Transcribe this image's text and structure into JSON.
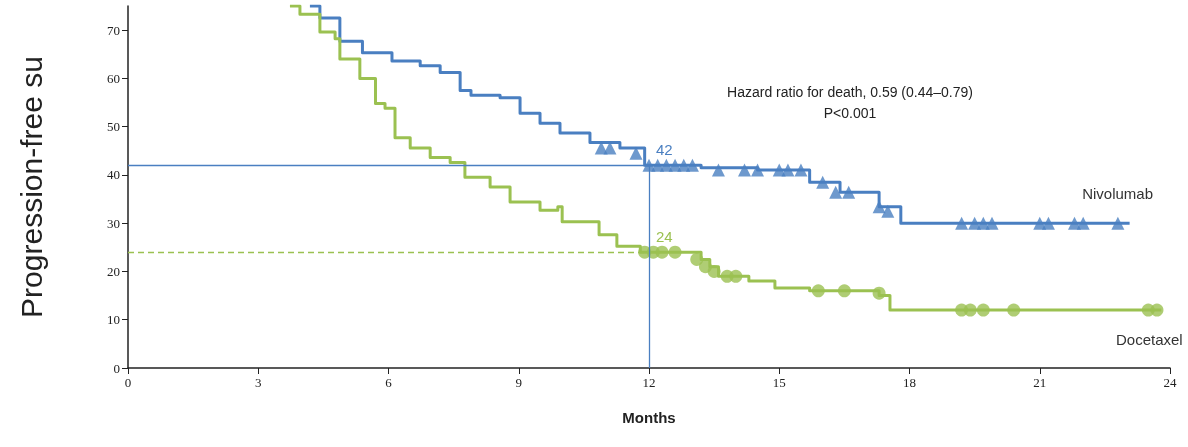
{
  "chart_data": {
    "type": "step",
    "xlabel": "Months",
    "ylabel": "Progression-free su",
    "xlim": [
      0,
      24
    ],
    "xticks": [
      0,
      3,
      6,
      9,
      12,
      15,
      18,
      21,
      24
    ],
    "ylim": [
      0,
      75
    ],
    "yticks": [
      0,
      10,
      20,
      30,
      40,
      50,
      60,
      70
    ],
    "grid": false,
    "legend": false,
    "annotations": [
      "Hazard ratio for death, 0.59 (0.44–0.79)",
      "P<0.001"
    ],
    "ref_lines": [
      {
        "axis": "y",
        "value": 42,
        "label": "42",
        "color": "#4a7fc1",
        "line_style": "solid"
      },
      {
        "axis": "y",
        "value": 24,
        "label": "24",
        "color": "#9bc151",
        "line_style": "dashed"
      },
      {
        "axis": "x",
        "value": 12,
        "color": "#4a7fc1",
        "line_style": "solid"
      }
    ],
    "series": [
      {
        "name": "Nivolumab",
        "color": "#4a7fc1",
        "x": [
          4.19,
          4.42,
          4.88,
          5.4,
          6.08,
          6.73,
          7.19,
          7.65,
          7.9,
          8.57,
          9.03,
          9.49,
          9.95,
          10.64,
          11.33,
          11.9,
          13.2,
          14.5,
          15.7,
          16.4,
          17.3,
          17.8,
          23.07
        ],
        "values": [
          75,
          72.5,
          67.7,
          65.3,
          63.6,
          62.6,
          61.2,
          57.5,
          56.5,
          56,
          52.8,
          50.7,
          48.7,
          46.7,
          45.6,
          42,
          41.5,
          41,
          38.5,
          36.4,
          33.4,
          30,
          30
        ]
      },
      {
        "name": "Docetaxel",
        "color": "#9bc151",
        "x": [
          3.73,
          3.96,
          4.42,
          4.77,
          4.88,
          5.34,
          5.7,
          5.92,
          6.15,
          6.5,
          6.96,
          7.42,
          7.76,
          8.34,
          8.8,
          9.49,
          9.9,
          10.0,
          10.85,
          11.26,
          11.8,
          13.2,
          13.4,
          13.6,
          14.3,
          14.9,
          15.7,
          17.3,
          17.55,
          23.8
        ],
        "values": [
          75,
          73.3,
          69.6,
          68.2,
          64,
          60,
          54.8,
          53.8,
          47.7,
          45.6,
          43.6,
          42.6,
          39.5,
          37.5,
          34.4,
          32.7,
          33.4,
          30.3,
          27.6,
          25.2,
          24,
          22.5,
          21,
          19,
          18,
          16.6,
          16,
          15,
          12,
          12
        ]
      },
      {
        "type": "scatter",
        "marker": "triangle",
        "color": "#4a7fc1",
        "x": [
          10.9,
          11.1,
          11.7,
          12.0,
          12.2,
          12.4,
          12.6,
          12.8,
          13.0,
          13.6,
          14.2,
          14.5,
          15.0,
          15.2,
          15.5,
          16.0,
          16.3,
          16.6,
          17.3,
          17.5,
          19.2,
          19.5,
          19.7,
          19.9,
          21.0,
          21.2,
          21.8,
          22.0,
          22.8
        ],
        "values": [
          45.6,
          45.6,
          44.5,
          42,
          42,
          42,
          42,
          42,
          42,
          41,
          41,
          41,
          41,
          41,
          41,
          38.5,
          36.4,
          36.4,
          33.4,
          32.5,
          30,
          30,
          30,
          30,
          30,
          30,
          30,
          30,
          30
        ]
      },
      {
        "type": "scatter",
        "marker": "circle",
        "color": "#9bc151",
        "x": [
          11.9,
          12.1,
          12.3,
          12.6,
          13.1,
          13.3,
          13.5,
          13.8,
          14.0,
          15.9,
          16.5,
          17.3,
          19.2,
          19.4,
          19.7,
          20.4,
          23.5,
          23.7
        ],
        "values": [
          24,
          24,
          24,
          24,
          22.5,
          21,
          20,
          19,
          19,
          16,
          16,
          15.5,
          12,
          12,
          12,
          12,
          12,
          12
        ]
      }
    ]
  }
}
